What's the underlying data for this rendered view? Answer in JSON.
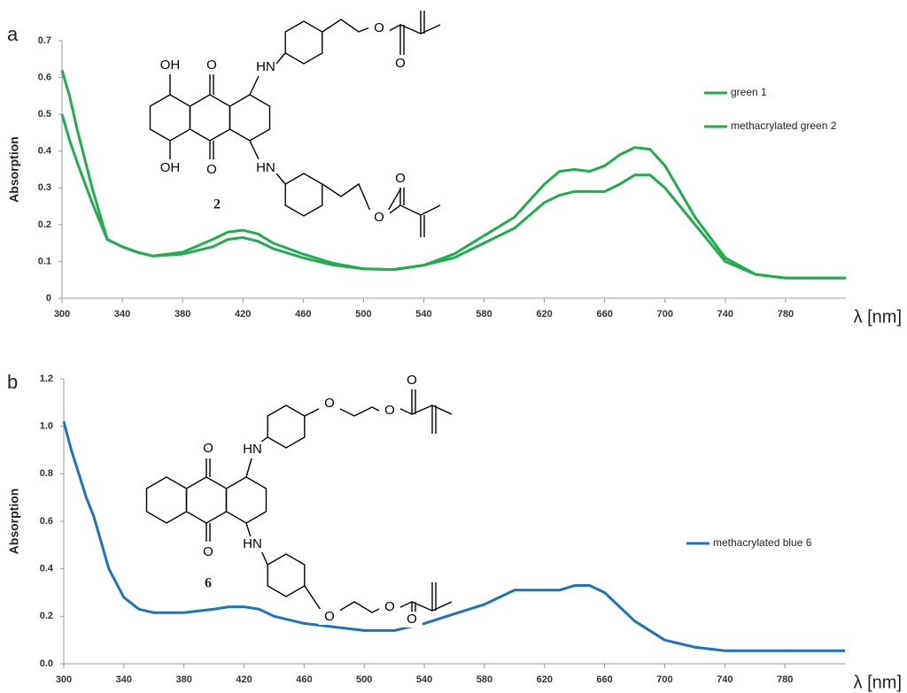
{
  "chart_data": [
    {
      "type": "line",
      "panel": "a",
      "y_label": "Absorption",
      "x_label": "λ [nm]",
      "xlim": [
        300,
        820
      ],
      "ylim": [
        0,
        0.7
      ],
      "xticks": [
        300,
        340,
        380,
        420,
        460,
        500,
        540,
        580,
        620,
        660,
        700,
        740,
        780
      ],
      "yticks": [
        0,
        0.1,
        0.2,
        0.3,
        0.4,
        0.5,
        0.6,
        0.7
      ],
      "x": [
        300,
        305,
        310,
        320,
        330,
        340,
        350,
        360,
        380,
        400,
        410,
        420,
        430,
        440,
        460,
        480,
        500,
        520,
        540,
        560,
        580,
        600,
        620,
        630,
        640,
        650,
        660,
        670,
        680,
        690,
        700,
        720,
        740,
        760,
        780,
        800,
        820
      ],
      "series": [
        {
          "name": "green 1",
          "color": "#1fae4b",
          "values": [
            0.62,
            0.55,
            0.46,
            0.3,
            0.16,
            0.14,
            0.125,
            0.115,
            0.125,
            0.16,
            0.18,
            0.185,
            0.175,
            0.15,
            0.12,
            0.095,
            0.08,
            0.078,
            0.09,
            0.12,
            0.17,
            0.22,
            0.31,
            0.345,
            0.35,
            0.345,
            0.36,
            0.39,
            0.41,
            0.405,
            0.36,
            0.22,
            0.11,
            0.065,
            0.055,
            0.055,
            0.055
          ]
        },
        {
          "name": "methacrylated green 2",
          "color": "#1fae4b",
          "values": [
            0.5,
            0.43,
            0.37,
            0.26,
            0.16,
            0.14,
            0.125,
            0.115,
            0.12,
            0.14,
            0.16,
            0.165,
            0.155,
            0.135,
            0.11,
            0.09,
            0.08,
            0.078,
            0.09,
            0.11,
            0.15,
            0.19,
            0.26,
            0.28,
            0.29,
            0.29,
            0.29,
            0.31,
            0.335,
            0.335,
            0.3,
            0.2,
            0.1,
            0.065,
            0.055,
            0.055,
            0.055
          ]
        }
      ],
      "legend": "right",
      "structure": {
        "label": "2",
        "atoms": [
          "OH",
          "O",
          "HN",
          "O",
          "O",
          "OH",
          "O",
          "HN",
          "O",
          "O"
        ]
      }
    },
    {
      "type": "line",
      "panel": "b",
      "y_label": "Absorption",
      "x_label": "λ [nm]",
      "xlim": [
        300,
        820
      ],
      "ylim": [
        0,
        1.2
      ],
      "xticks": [
        300,
        340,
        380,
        420,
        460,
        500,
        540,
        580,
        620,
        660,
        700,
        740,
        780
      ],
      "yticks": [
        {
          "value": 0,
          "label": "0.0"
        },
        0.2,
        0.4,
        0.6,
        0.8,
        {
          "value": 1,
          "label": "1.0"
        },
        1.2
      ],
      "x": [
        300,
        305,
        310,
        315,
        320,
        330,
        340,
        350,
        360,
        380,
        400,
        410,
        420,
        430,
        440,
        460,
        480,
        500,
        520,
        540,
        560,
        580,
        600,
        620,
        630,
        640,
        650,
        660,
        680,
        700,
        720,
        740,
        760,
        780,
        800,
        820
      ],
      "series": [
        {
          "name": "methacrylated blue 6",
          "color": "#1c74bc",
          "values": [
            1.02,
            0.9,
            0.8,
            0.7,
            0.62,
            0.4,
            0.28,
            0.23,
            0.215,
            0.215,
            0.23,
            0.24,
            0.24,
            0.23,
            0.2,
            0.17,
            0.155,
            0.14,
            0.14,
            0.17,
            0.21,
            0.25,
            0.31,
            0.31,
            0.31,
            0.33,
            0.33,
            0.3,
            0.18,
            0.1,
            0.07,
            0.055,
            0.055,
            0.055,
            0.055,
            0.055
          ]
        }
      ],
      "legend": "right",
      "structure": {
        "label": "6",
        "atoms": [
          "O",
          "HN",
          "O",
          "O",
          "O",
          "O",
          "HN",
          "O",
          "O",
          "O"
        ]
      }
    }
  ]
}
